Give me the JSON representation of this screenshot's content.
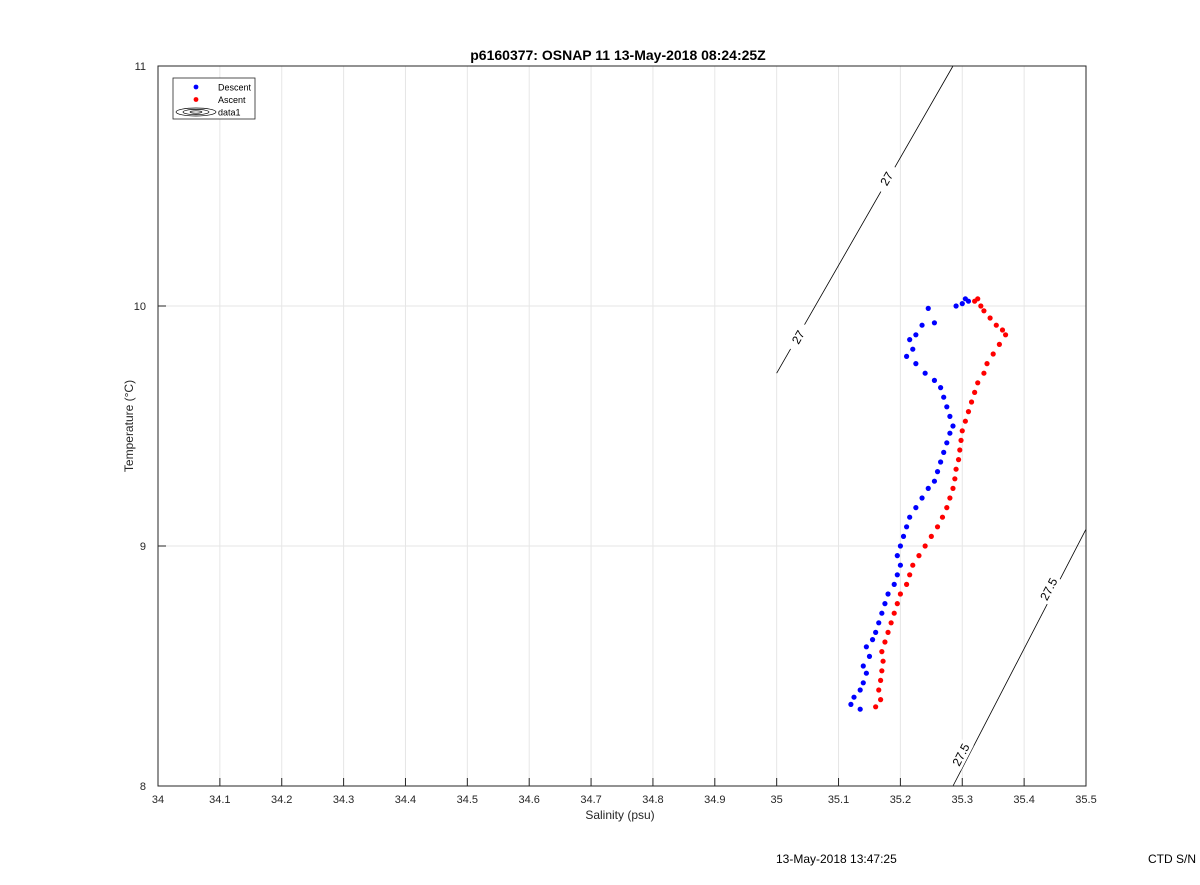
{
  "chart_data": {
    "type": "scatter",
    "title": "p6160377: OSNAP 11 13-May-2018 08:24:25Z",
    "xlabel": "Salinity (psu)",
    "ylabel": "Temperature (°C)",
    "xlim": [
      34,
      35.5
    ],
    "ylim": [
      8,
      11
    ],
    "x_ticks": [
      "34",
      "34.1",
      "34.2",
      "34.3",
      "34.4",
      "34.5",
      "34.6",
      "34.7",
      "34.8",
      "34.9",
      "35",
      "35.1",
      "35.2",
      "35.3",
      "35.4",
      "35.5"
    ],
    "y_ticks": [
      "8",
      "9",
      "10",
      "11"
    ],
    "grid": true,
    "legend_position": "top-left",
    "legend": [
      {
        "label": "Descent",
        "marker": "dot",
        "color": "#0000ff"
      },
      {
        "label": "Ascent",
        "marker": "dot",
        "color": "#ff0000"
      },
      {
        "label": "data1",
        "marker": "contour"
      }
    ],
    "series": [
      {
        "name": "Descent",
        "color": "#0000ff",
        "points": [
          [
            35.31,
            10.02
          ],
          [
            35.305,
            10.03
          ],
          [
            35.3,
            10.01
          ],
          [
            35.29,
            10.0
          ],
          [
            35.245,
            9.99
          ],
          [
            35.255,
            9.93
          ],
          [
            35.235,
            9.92
          ],
          [
            35.225,
            9.88
          ],
          [
            35.215,
            9.86
          ],
          [
            35.22,
            9.82
          ],
          [
            35.21,
            9.79
          ],
          [
            35.225,
            9.76
          ],
          [
            35.24,
            9.72
          ],
          [
            35.255,
            9.69
          ],
          [
            35.265,
            9.66
          ],
          [
            35.27,
            9.62
          ],
          [
            35.275,
            9.58
          ],
          [
            35.28,
            9.54
          ],
          [
            35.285,
            9.5
          ],
          [
            35.28,
            9.47
          ],
          [
            35.275,
            9.43
          ],
          [
            35.27,
            9.39
          ],
          [
            35.265,
            9.35
          ],
          [
            35.26,
            9.31
          ],
          [
            35.255,
            9.27
          ],
          [
            35.245,
            9.24
          ],
          [
            35.235,
            9.2
          ],
          [
            35.225,
            9.16
          ],
          [
            35.215,
            9.12
          ],
          [
            35.21,
            9.08
          ],
          [
            35.205,
            9.04
          ],
          [
            35.2,
            9.0
          ],
          [
            35.195,
            8.96
          ],
          [
            35.2,
            8.92
          ],
          [
            35.195,
            8.88
          ],
          [
            35.19,
            8.84
          ],
          [
            35.18,
            8.8
          ],
          [
            35.175,
            8.76
          ],
          [
            35.17,
            8.72
          ],
          [
            35.165,
            8.68
          ],
          [
            35.16,
            8.64
          ],
          [
            35.155,
            8.61
          ],
          [
            35.145,
            8.58
          ],
          [
            35.15,
            8.54
          ],
          [
            35.14,
            8.5
          ],
          [
            35.145,
            8.47
          ],
          [
            35.14,
            8.43
          ],
          [
            35.135,
            8.4
          ],
          [
            35.125,
            8.37
          ],
          [
            35.12,
            8.34
          ],
          [
            35.135,
            8.32
          ]
        ]
      },
      {
        "name": "Ascent",
        "color": "#ff0000",
        "points": [
          [
            35.32,
            10.02
          ],
          [
            35.325,
            10.03
          ],
          [
            35.33,
            10.0
          ],
          [
            35.335,
            9.98
          ],
          [
            35.345,
            9.95
          ],
          [
            35.355,
            9.92
          ],
          [
            35.365,
            9.9
          ],
          [
            35.37,
            9.88
          ],
          [
            35.36,
            9.84
          ],
          [
            35.35,
            9.8
          ],
          [
            35.34,
            9.76
          ],
          [
            35.335,
            9.72
          ],
          [
            35.325,
            9.68
          ],
          [
            35.32,
            9.64
          ],
          [
            35.315,
            9.6
          ],
          [
            35.31,
            9.56
          ],
          [
            35.305,
            9.52
          ],
          [
            35.3,
            9.48
          ],
          [
            35.298,
            9.44
          ],
          [
            35.296,
            9.4
          ],
          [
            35.294,
            9.36
          ],
          [
            35.29,
            9.32
          ],
          [
            35.288,
            9.28
          ],
          [
            35.285,
            9.24
          ],
          [
            35.28,
            9.2
          ],
          [
            35.275,
            9.16
          ],
          [
            35.268,
            9.12
          ],
          [
            35.26,
            9.08
          ],
          [
            35.25,
            9.04
          ],
          [
            35.24,
            9.0
          ],
          [
            35.23,
            8.96
          ],
          [
            35.22,
            8.92
          ],
          [
            35.215,
            8.88
          ],
          [
            35.21,
            8.84
          ],
          [
            35.2,
            8.8
          ],
          [
            35.195,
            8.76
          ],
          [
            35.19,
            8.72
          ],
          [
            35.185,
            8.68
          ],
          [
            35.18,
            8.64
          ],
          [
            35.175,
            8.6
          ],
          [
            35.17,
            8.56
          ],
          [
            35.172,
            8.52
          ],
          [
            35.17,
            8.48
          ],
          [
            35.168,
            8.44
          ],
          [
            35.165,
            8.4
          ],
          [
            35.168,
            8.36
          ],
          [
            35.16,
            8.33
          ]
        ]
      }
    ],
    "isopycnals": [
      {
        "label": "27",
        "line": [
          [
            35.0,
            9.72
          ],
          [
            35.285,
            11.0
          ]
        ],
        "label_positions": [
          [
            35.035,
            9.87
          ],
          [
            35.178,
            10.53
          ]
        ]
      },
      {
        "label": "27.5",
        "line": [
          [
            35.285,
            8.0
          ],
          [
            35.5,
            9.07
          ]
        ],
        "label_positions": [
          [
            35.298,
            8.13
          ],
          [
            35.44,
            8.82
          ]
        ]
      }
    ]
  },
  "footer": {
    "date": "13-May-2018 13:47:25",
    "ctd": "CTD S/N"
  }
}
